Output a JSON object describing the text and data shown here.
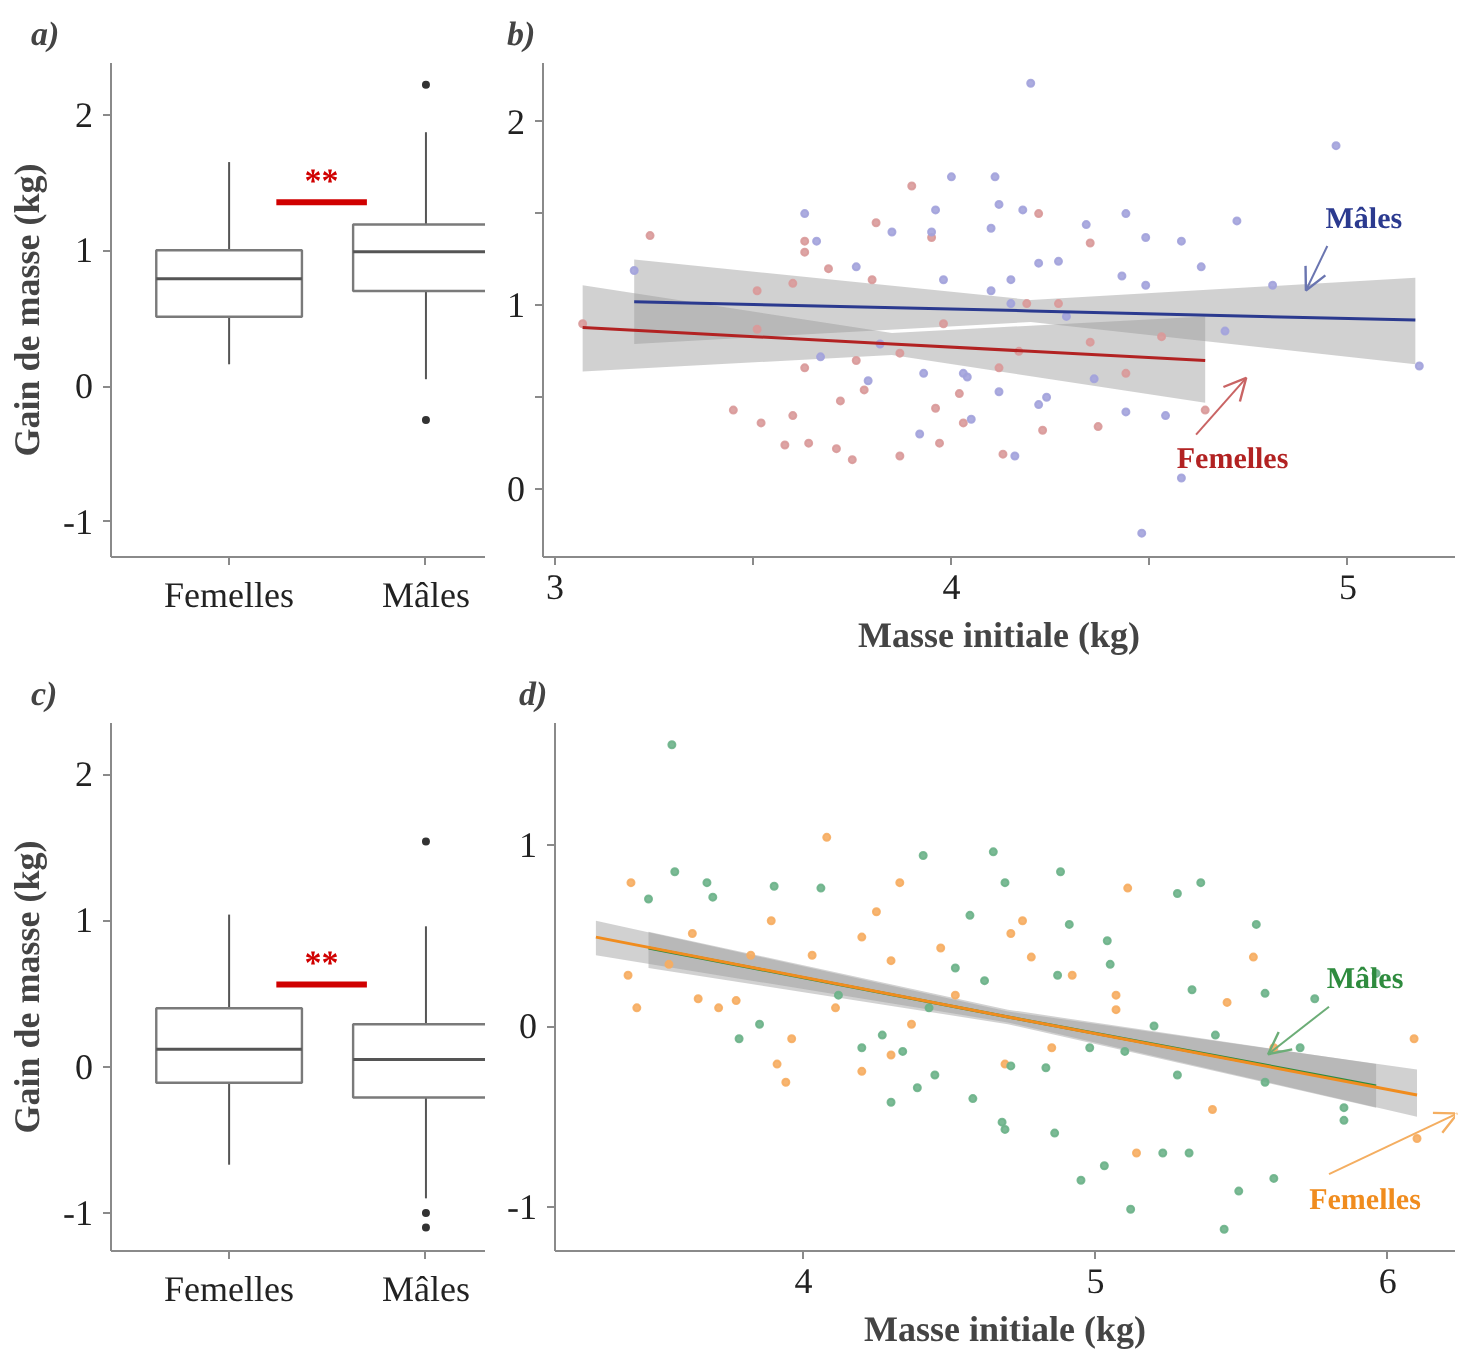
{
  "chart_data": [
    {
      "type": "box",
      "title": "a)",
      "ylabel": "Gain de masse (kg)",
      "categories": [
        "Femelles",
        "Mâles"
      ],
      "ylim": [
        -1.26,
        2.38
      ],
      "yticks": [
        -1,
        0,
        1,
        2
      ],
      "grid": false,
      "boxes": [
        {
          "low": 0.16,
          "q1": 0.51,
          "median": 0.79,
          "q3": 1.0,
          "high": 1.65
        },
        {
          "low": 0.05,
          "q1": 0.7,
          "median": 0.99,
          "q3": 1.19,
          "high": 1.87,
          "outliers": [
            2.22,
            -0.25
          ]
        }
      ],
      "annotations": [
        "**"
      ]
    },
    {
      "type": "scatter",
      "title": "b)",
      "xlabel": "Masse initiale (kg)",
      "xlim": [
        2.97,
        5.27
      ],
      "ylim": [
        -0.37,
        2.32
      ],
      "xticks": [
        3,
        {
          "value": 3.5,
          "label": null
        },
        4,
        {
          "value": 4.5,
          "label": null
        },
        5
      ],
      "yticks": [
        0,
        {
          "value": 0.5,
          "label": null
        },
        1,
        {
          "value": 1.5,
          "label": null
        },
        2
      ],
      "grid": false,
      "series": [
        {
          "type": "scatter",
          "marker": "circle",
          "color": "#d99a9a",
          "x": [
            3.24,
            3.07,
            3.9,
            4.22,
            3.81,
            3.95,
            3.63,
            3.63,
            4.35,
            3.69,
            3.8,
            3.51,
            3.6,
            4.19,
            4.27,
            3.45,
            3.52,
            3.58,
            3.64,
            3.71,
            3.75,
            3.87,
            4.13,
            3.97,
            3.96,
            4.03,
            4.23,
            4.37,
            4.64,
            4.44,
            3.72,
            3.78,
            3.6,
            3.63,
            3.76,
            3.87,
            4.02,
            4.12,
            4.17,
            4.35,
            4.53,
            3.51,
            3.98
          ],
          "values": [
            1.38,
            0.9,
            1.65,
            1.5,
            1.45,
            1.37,
            1.35,
            1.29,
            1.34,
            1.2,
            1.14,
            1.08,
            1.12,
            1.01,
            1.01,
            0.43,
            0.36,
            0.24,
            0.25,
            0.22,
            0.16,
            0.18,
            0.19,
            0.25,
            0.44,
            0.36,
            0.32,
            0.34,
            0.43,
            0.63,
            0.48,
            0.54,
            0.4,
            0.66,
            0.7,
            0.74,
            0.52,
            0.66,
            0.75,
            0.8,
            0.83,
            0.87,
            0.9
          ]
        },
        {
          "type": "scatter",
          "marker": "circle",
          "color": "#a3a3dc",
          "x": [
            4.97,
            4.2,
            4.58,
            4.48,
            4.0,
            4.11,
            3.63,
            3.96,
            3.85,
            3.95,
            4.1,
            4.12,
            4.18,
            4.22,
            4.27,
            4.34,
            4.44,
            4.49,
            4.58,
            4.72,
            4.63,
            4.81,
            4.69,
            5.18,
            3.2,
            3.66,
            3.76,
            3.98,
            4.1,
            4.15,
            4.15,
            4.29,
            4.43,
            4.49,
            4.04,
            4.03,
            4.12,
            4.22,
            4.24,
            3.92,
            4.05,
            4.16,
            4.44,
            4.54,
            3.79,
            3.67,
            3.82,
            3.93,
            4.36
          ],
          "values": [
            1.87,
            2.21,
            0.06,
            -0.24,
            1.7,
            1.7,
            1.5,
            1.52,
            1.4,
            1.4,
            1.42,
            1.55,
            1.52,
            1.23,
            1.24,
            1.44,
            1.5,
            1.37,
            1.35,
            1.46,
            1.21,
            1.11,
            0.86,
            0.67,
            1.19,
            1.35,
            1.21,
            1.14,
            1.08,
            1.14,
            1.01,
            0.94,
            1.16,
            1.11,
            0.61,
            0.63,
            0.53,
            0.46,
            0.5,
            0.3,
            0.38,
            0.18,
            0.42,
            0.4,
            0.59,
            0.72,
            0.79,
            0.63,
            0.6
          ]
        },
        {
          "type": "line",
          "name": "Mâles",
          "color": "#2b3a8f",
          "x": [
            3.2,
            4.2,
            5.17
          ],
          "values": [
            1.02,
            0.97,
            0.92
          ],
          "lower": [
            0.79,
            0.91,
            0.68
          ],
          "upper": [
            1.25,
            1.03,
            1.15
          ]
        },
        {
          "type": "line",
          "name": "Femelles",
          "color": "#b22222",
          "x": [
            3.07,
            3.85,
            4.64
          ],
          "values": [
            0.88,
            0.79,
            0.7
          ],
          "lower": [
            0.64,
            0.73,
            0.47
          ],
          "upper": [
            1.11,
            0.85,
            0.94
          ]
        }
      ]
    },
    {
      "type": "box",
      "title": "c)",
      "ylabel": "Gain de masse (kg)",
      "categories": [
        "Femelles",
        "Mâles"
      ],
      "ylim": [
        -1.26,
        2.35
      ],
      "yticks": [
        -1,
        0,
        1,
        2
      ],
      "grid": false,
      "boxes": [
        {
          "low": -0.67,
          "q1": -0.11,
          "median": 0.12,
          "q3": 0.4,
          "high": 1.04
        },
        {
          "low": -0.9,
          "q1": -0.21,
          "median": 0.05,
          "q3": 0.29,
          "high": 0.96,
          "outliers": [
            1.54,
            -1.0,
            -1.1
          ]
        }
      ],
      "annotations": [
        "**"
      ]
    },
    {
      "type": "scatter",
      "title": "d)",
      "xlabel": "Masse initiale (kg)",
      "xlim": [
        3.15,
        6.23
      ],
      "ylim": [
        -1.24,
        1.67
      ],
      "xticks": [
        4,
        5,
        6
      ],
      "yticks": [
        -1,
        0,
        1
      ],
      "grid": false,
      "series": [
        {
          "type": "scatter",
          "marker": "circle",
          "color": "#f6ad62",
          "x": [
            4.08,
            3.41,
            4.33,
            4.25,
            3.89,
            4.75,
            5.11,
            5.54,
            6.09,
            6.1,
            5.61,
            5.4,
            5.14,
            5.07,
            5.07,
            5.45,
            4.85,
            4.69,
            4.3,
            4.2,
            3.94,
            3.91,
            3.96,
            3.77,
            3.64,
            3.43,
            3.4,
            3.54,
            3.82,
            4.03,
            4.2,
            4.47,
            4.52,
            4.37,
            4.11,
            3.71,
            3.62,
            4.3,
            4.92,
            4.78,
            4.71
          ],
          "values": [
            1.04,
            0.79,
            0.79,
            0.63,
            0.58,
            0.58,
            0.76,
            0.38,
            -0.07,
            -0.62,
            -0.12,
            -0.46,
            -0.7,
            0.17,
            0.09,
            0.13,
            -0.12,
            -0.21,
            -0.16,
            -0.25,
            -0.31,
            -0.21,
            -0.07,
            0.14,
            0.15,
            0.1,
            0.28,
            0.34,
            0.39,
            0.39,
            0.49,
            0.43,
            0.17,
            0.01,
            0.1,
            0.1,
            0.51,
            0.36,
            0.28,
            0.38,
            0.51
          ]
        },
        {
          "type": "scatter",
          "marker": "circle",
          "color": "#6db38a",
          "x": [
            3.55,
            4.65,
            4.41,
            4.69,
            4.88,
            5.36,
            5.28,
            4.06,
            3.56,
            3.67,
            3.9,
            4.57,
            4.91,
            5.55,
            5.04,
            5.96,
            5.75,
            5.58,
            5.33,
            5.2,
            5.05,
            4.87,
            4.62,
            4.52,
            4.43,
            4.27,
            4.34,
            4.45,
            4.71,
            4.83,
            4.98,
            5.1,
            5.28,
            4.39,
            4.3,
            4.58,
            4.68,
            4.69,
            4.86,
            5.03,
            5.12,
            5.23,
            5.32,
            5.44,
            5.49,
            5.61,
            5.85,
            5.85,
            4.95,
            5.58,
            5.7,
            5.41,
            4.12,
            4.2,
            3.78,
            3.85,
            3.69,
            3.47
          ],
          "values": [
            1.55,
            0.96,
            0.94,
            0.79,
            0.85,
            0.79,
            0.73,
            0.76,
            0.85,
            0.79,
            0.77,
            0.61,
            0.56,
            0.56,
            0.47,
            0.29,
            0.15,
            0.18,
            0.2,
            0.0,
            0.34,
            0.28,
            0.25,
            0.32,
            0.1,
            -0.05,
            -0.14,
            -0.27,
            -0.22,
            -0.23,
            -0.12,
            -0.14,
            -0.27,
            -0.34,
            -0.42,
            -0.4,
            -0.53,
            -0.57,
            -0.59,
            -0.77,
            -1.01,
            -0.7,
            -0.7,
            -1.12,
            -0.91,
            -0.84,
            -0.45,
            -0.52,
            -0.85,
            -0.31,
            -0.12,
            -0.05,
            0.17,
            -0.12,
            -0.07,
            0.01,
            0.71,
            0.7
          ]
        },
        {
          "type": "line",
          "name": "Mâles",
          "color": "#2e8b3e",
          "x": [
            3.47,
            4.7,
            5.96
          ],
          "values": [
            0.43,
            0.05,
            -0.33
          ],
          "lower": [
            0.32,
            0.01,
            -0.45
          ],
          "upper": [
            0.52,
            0.09,
            -0.21
          ]
        },
        {
          "type": "line",
          "name": "Femelles",
          "color": "#f08c1e",
          "x": [
            3.29,
            4.7,
            6.1
          ],
          "values": [
            0.49,
            0.05,
            -0.38
          ],
          "lower": [
            0.39,
            0.02,
            -0.5
          ],
          "upper": [
            0.58,
            0.08,
            -0.24
          ]
        }
      ]
    }
  ]
}
